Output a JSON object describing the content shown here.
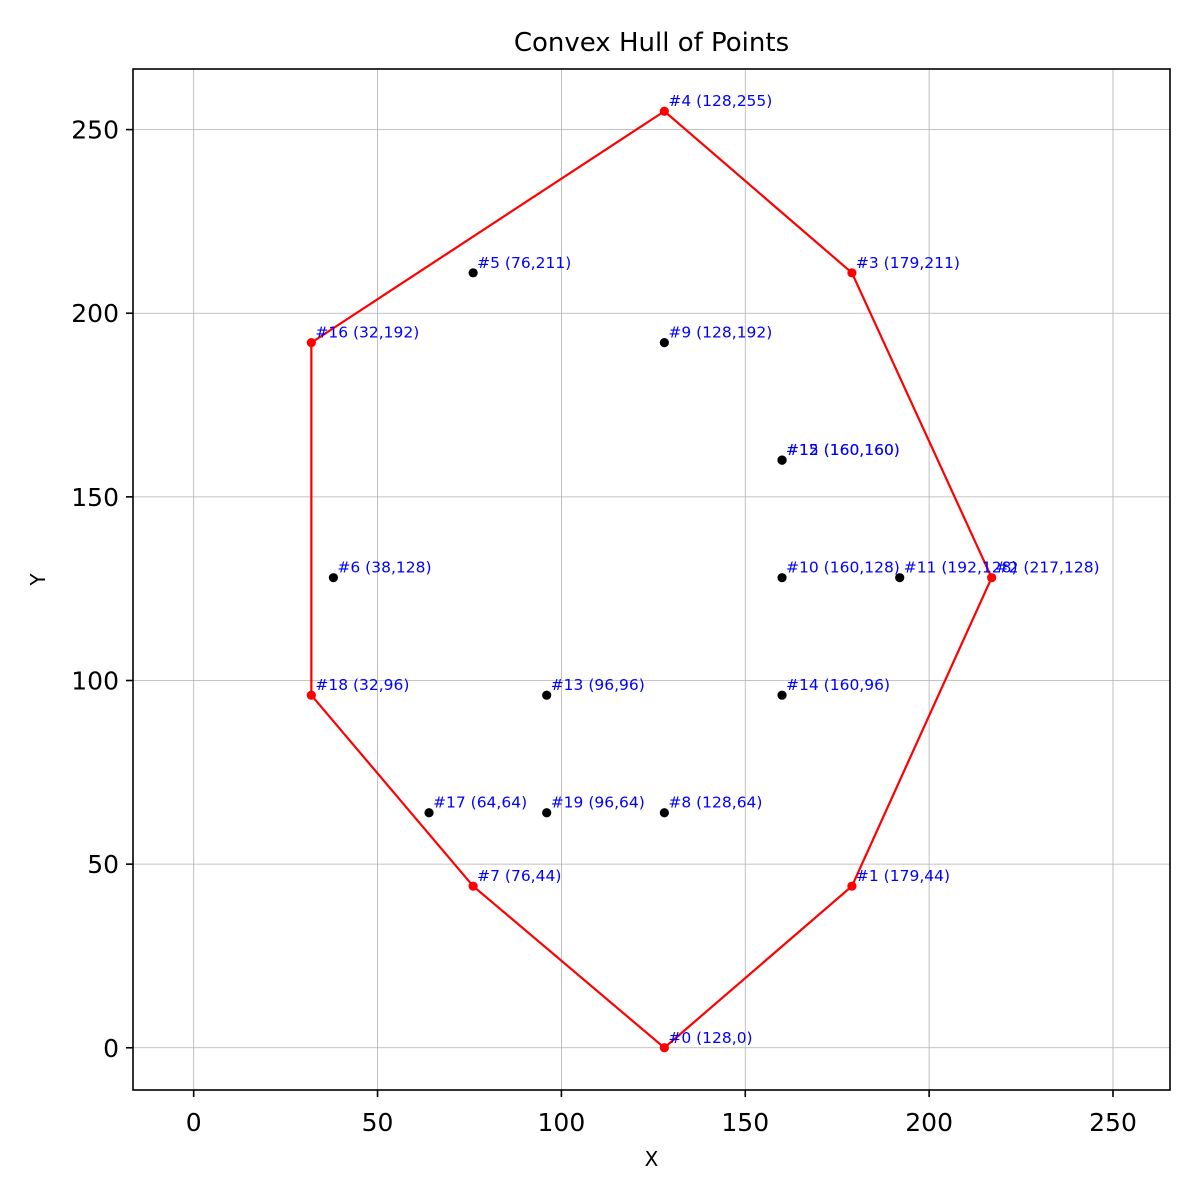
{
  "chart_data": {
    "type": "scatter",
    "title": "Convex Hull of Points",
    "xlabel": "X",
    "ylabel": "Y",
    "xlim": [
      -16.5,
      265.5
    ],
    "ylim": [
      -11.5,
      266.5
    ],
    "xticks": [
      0,
      50,
      100,
      150,
      200,
      250
    ],
    "yticks": [
      0,
      50,
      100,
      150,
      200,
      250
    ],
    "grid": true,
    "colors": {
      "hull": "#ff0000",
      "interior": "#000000",
      "label": "#0000ff",
      "grid": "#b0b0b0"
    },
    "points": [
      {
        "x": 128,
        "y": 0,
        "label": "#0 (128,0)",
        "hull": true
      },
      {
        "x": 179,
        "y": 44,
        "label": "#1 (179,44)",
        "hull": true
      },
      {
        "x": 217,
        "y": 128,
        "label": "#2 (217,128)",
        "hull": true
      },
      {
        "x": 179,
        "y": 211,
        "label": "#3 (179,211)",
        "hull": true
      },
      {
        "x": 128,
        "y": 255,
        "label": "#4 (128,255)",
        "hull": true
      },
      {
        "x": 76,
        "y": 211,
        "label": "#5 (76,211)",
        "hull": false
      },
      {
        "x": 38,
        "y": 128,
        "label": "#6 (38,128)",
        "hull": false
      },
      {
        "x": 76,
        "y": 44,
        "label": "#7 (76,44)",
        "hull": true
      },
      {
        "x": 128,
        "y": 64,
        "label": "#8 (128,64)",
        "hull": false
      },
      {
        "x": 128,
        "y": 192,
        "label": "#9 (128,192)",
        "hull": false
      },
      {
        "x": 160,
        "y": 128,
        "label": "#10 (160,128)",
        "hull": false
      },
      {
        "x": 192,
        "y": 128,
        "label": "#11 (192,128)",
        "hull": false
      },
      {
        "x": 160,
        "y": 160,
        "label": "#12 (160,160)",
        "hull": false
      },
      {
        "x": 96,
        "y": 96,
        "label": "#13 (96,96)",
        "hull": false
      },
      {
        "x": 160,
        "y": 96,
        "label": "#14 (160,96)",
        "hull": false
      },
      {
        "x": 160,
        "y": 160,
        "label": "#15 (160,160)",
        "hull": false
      },
      {
        "x": 32,
        "y": 192,
        "label": "#16 (32,192)",
        "hull": true
      },
      {
        "x": 64,
        "y": 64,
        "label": "#17 (64,64)",
        "hull": false
      },
      {
        "x": 32,
        "y": 96,
        "label": "#18 (32,96)",
        "hull": true
      },
      {
        "x": 96,
        "y": 64,
        "label": "#19 (96,64)",
        "hull": false
      }
    ],
    "hull_order": [
      0,
      1,
      2,
      3,
      4,
      16,
      18,
      7,
      0
    ]
  }
}
